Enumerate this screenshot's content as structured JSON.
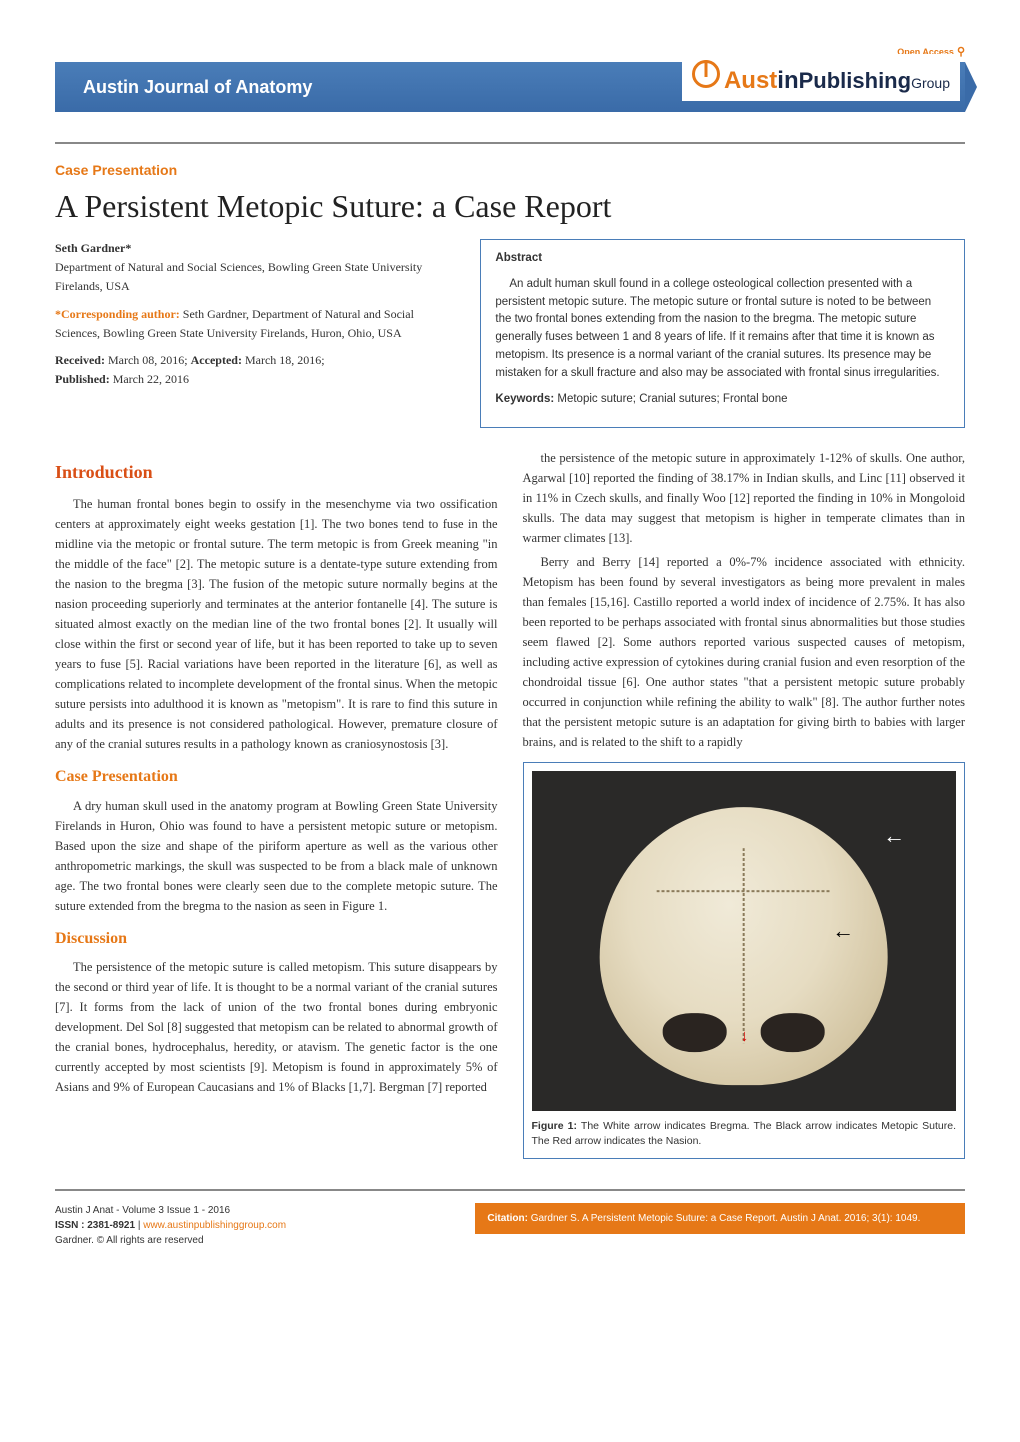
{
  "theme": {
    "accent_orange": "#e67817",
    "heading_orange": "#d94f16",
    "band_blue_top": "#4a7db8",
    "band_blue_bot": "#3a6ba8",
    "body_text": "#333333",
    "logo_navy": "#1a2a4a",
    "rule_gray": "#888888",
    "background": "#ffffff"
  },
  "header": {
    "open_access": "Open Access",
    "journal_name": "Austin Journal of Anatomy",
    "logo_brand": "Aust",
    "logo_in": "in",
    "logo_pub": " Publishing",
    "logo_group": " Group"
  },
  "article": {
    "case_label": "Case Presentation",
    "title": "A Persistent Metopic Suture: a Case Report",
    "author_name": "Seth Gardner*",
    "author_affil": "Department of Natural and Social Sciences, Bowling Green State University Firelands, USA",
    "corr_label": "*Corresponding author:",
    "corr_text": " Seth Gardner, Department of Natural and Social Sciences, Bowling Green State University Firelands, Huron, Ohio, USA",
    "received_label": "Received:",
    "received_date": " March 08, 2016; ",
    "accepted_label": "Accepted:",
    "accepted_date": " March 18, 2016; ",
    "published_label": "Published:",
    "published_date": " March 22, 2016"
  },
  "abstract": {
    "title": "Abstract",
    "body": "An adult human skull found in a college osteological collection presented with a persistent metopic suture. The metopic suture or frontal suture is noted to be between the two frontal bones extending from the nasion to the bregma. The metopic suture generally fuses between 1 and 8 years of life. If it remains after that time it is known as metopism. Its presence is a normal variant of the cranial sutures. Its presence may be mistaken for a skull fracture and also may be associated with frontal sinus irregularities.",
    "kw_label": "Keywords:",
    "kw_text": " Metopic suture; Cranial sutures; Frontal bone"
  },
  "sections": {
    "intro_h": "Introduction",
    "intro_p1": "The human frontal bones begin to ossify in the mesenchyme via two ossification centers at approximately eight weeks gestation [1]. The two bones tend to fuse in the midline via the metopic or frontal suture. The term metopic is from Greek meaning \"in the middle of the face\" [2]. The metopic suture is a dentate-type suture extending from the nasion to the bregma [3]. The fusion of the metopic suture normally begins at the nasion proceeding superiorly and terminates at the anterior fontanelle [4]. The suture is situated almost exactly on the median line of the two frontal bones [2]. It usually will close within the first or second year of life, but it has been reported to take up to seven years to fuse [5]. Racial variations have been reported in the literature [6], as well as complications related to incomplete development of the frontal sinus. When the metopic suture persists into adulthood it is known as \"metopism\". It is rare to find this suture in adults and its presence is not considered pathological. However, premature closure of any of the cranial sutures results in a pathology known as craniosynostosis [3].",
    "case_h": "Case Presentation",
    "case_p1": "A dry human skull used in the anatomy program at Bowling Green State University Firelands in Huron, Ohio was found to have a persistent metopic suture or metopism. Based upon the size and shape of the piriform aperture as well as the various other anthropometric markings, the skull was suspected to be from a black male of unknown age. The two frontal bones were clearly seen due to the complete metopic suture. The suture extended from the bregma to the nasion as seen in Figure 1.",
    "disc_h": "Discussion",
    "disc_p1": "The persistence of the metopic suture is called metopism. This suture disappears by the second or third year of life. It is thought to be a normal variant of the cranial sutures [7]. It forms from the lack of union of the two frontal bones during embryonic development. Del Sol [8] suggested that metopism can be related to abnormal growth of the cranial bones, hydrocephalus, heredity, or atavism. The genetic factor is the one currently accepted by most scientists [9]. Metopism is found in approximately 5% of Asians and 9% of European Caucasians and 1% of Blacks [1,7]. Bergman [7] reported",
    "col2_p1": "the persistence of the metopic suture in approximately 1-12% of skulls. One author, Agarwal [10] reported the finding of 38.17% in Indian skulls, and Linc [11] observed it in 11% in Czech skulls, and finally Woo [12] reported the finding in 10% in Mongoloid skulls. The data may suggest that metopism is higher in temperate climates than in warmer climates [13].",
    "col2_p2": "Berry and Berry [14] reported a 0%-7% incidence associated with ethnicity. Metopism has been found by several investigators as being more prevalent in males than females [15,16]. Castillo reported a world index of incidence of 2.75%. It has also been reported to be perhaps associated with frontal sinus abnormalities but those studies seem flawed [2]. Some authors reported various suspected causes of metopism, including active expression of cytokines during cranial fusion and even resorption of the chondroidal tissue [6]. One author states \"that a persistent metopic suture probably occurred in conjunction while refining the ability to walk\" [8]. The author further notes that the persistent metopic suture is an adaptation for giving birth to babies with larger brains, and is related to the shift to a rapidly"
  },
  "figure": {
    "label": "Figure 1:",
    "caption": " The White arrow indicates Bregma. The Black arrow indicates Metopic Suture. The Red arrow indicates the Nasion.",
    "arrow_white_color": "#ffffff",
    "arrow_black_color": "#000000",
    "arrow_red_color": "#d00000",
    "skull_bg": "#2a2928",
    "skull_light": "#f0ead8",
    "skull_dark": "#b8a680"
  },
  "footer": {
    "vol_line": "Austin J Anat - Volume 3 Issue 1 - 2016",
    "issn_label": "ISSN : 2381-8921",
    "issn_sep": " | ",
    "link": "www.austinpublishinggroup.com",
    "copyright": "Gardner. © All rights are reserved",
    "cit_label": "Citation:",
    "cit_text": " Gardner S. A Persistent Metopic Suture: a Case Report. Austin J Anat. 2016; 3(1): 1049."
  }
}
